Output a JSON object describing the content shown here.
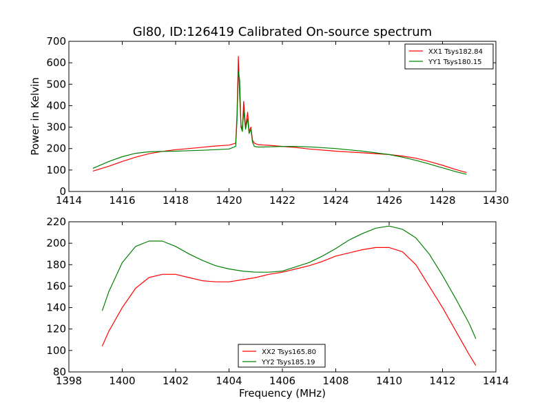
{
  "chart_data": [
    {
      "type": "line",
      "title": "Gl80, ID:126419 Calibrated On-source spectrum",
      "xlabel": "",
      "ylabel": "Power in Kelvin",
      "xlim": [
        1414,
        1430
      ],
      "ylim": [
        0,
        700
      ],
      "xticks": [
        "1414",
        "1416",
        "1418",
        "1420",
        "1422",
        "1424",
        "1426",
        "1428",
        "1430"
      ],
      "yticks": [
        "0",
        "100",
        "200",
        "300",
        "400",
        "500",
        "600",
        "700"
      ],
      "legend_position": "upper right",
      "series": [
        {
          "name": "XX1 Tsys182.84",
          "color": "#ff0000",
          "x": [
            1414.9,
            1415.5,
            1416,
            1416.5,
            1417,
            1417.5,
            1418,
            1418.5,
            1419,
            1419.5,
            1420,
            1420.25,
            1420.3,
            1420.35,
            1420.4,
            1420.45,
            1420.5,
            1420.55,
            1420.62,
            1420.7,
            1420.75,
            1420.82,
            1420.88,
            1420.95,
            1421.1,
            1421.5,
            1422,
            1422.5,
            1423,
            1424,
            1425,
            1426,
            1426.5,
            1427,
            1427.5,
            1428,
            1428.5,
            1428.9
          ],
          "y": [
            95,
            118,
            140,
            160,
            176,
            187,
            195,
            200,
            206,
            212,
            216,
            225,
            360,
            630,
            440,
            310,
            290,
            420,
            300,
            370,
            280,
            300,
            240,
            225,
            218,
            215,
            210,
            205,
            198,
            188,
            180,
            172,
            165,
            155,
            140,
            122,
            102,
            88
          ]
        },
        {
          "name": "YY1 Tsys180.15",
          "color": "#008000",
          "x": [
            1414.9,
            1415.5,
            1416,
            1416.5,
            1417,
            1417.5,
            1418,
            1418.5,
            1419,
            1419.5,
            1420,
            1420.25,
            1420.3,
            1420.35,
            1420.4,
            1420.45,
            1420.5,
            1420.55,
            1420.62,
            1420.7,
            1420.75,
            1420.82,
            1420.88,
            1420.95,
            1421.1,
            1421.5,
            1422,
            1422.5,
            1423,
            1424,
            1425,
            1426,
            1426.5,
            1427,
            1427.5,
            1428,
            1428.5,
            1428.9
          ],
          "y": [
            108,
            140,
            162,
            178,
            185,
            187,
            188,
            190,
            192,
            195,
            198,
            210,
            330,
            560,
            520,
            300,
            280,
            380,
            290,
            340,
            270,
            290,
            230,
            210,
            207,
            208,
            210,
            210,
            208,
            200,
            188,
            172,
            160,
            145,
            128,
            110,
            92,
            80
          ]
        }
      ]
    },
    {
      "type": "line",
      "title": "",
      "xlabel": "Frequency (MHz)",
      "ylabel": "",
      "xlim": [
        1398,
        1414
      ],
      "ylim": [
        80,
        220
      ],
      "xticks": [
        "1398",
        "1400",
        "1402",
        "1404",
        "1406",
        "1408",
        "1410",
        "1412",
        "1414"
      ],
      "yticks": [
        "80",
        "100",
        "120",
        "140",
        "160",
        "180",
        "200",
        "220"
      ],
      "legend_position": "lower center",
      "series": [
        {
          "name": "XX2 Tsys165.80",
          "color": "#ff0000",
          "x": [
            1399.25,
            1399.5,
            1400,
            1400.5,
            1401,
            1401.5,
            1402,
            1402.5,
            1403,
            1403.5,
            1404,
            1404.5,
            1405,
            1405.5,
            1406,
            1406.5,
            1407,
            1407.5,
            1408,
            1408.5,
            1409,
            1409.5,
            1410,
            1410.5,
            1411,
            1411.5,
            1412,
            1412.5,
            1413,
            1413.25
          ],
          "y": [
            104,
            118,
            140,
            158,
            168,
            171,
            171,
            168,
            165,
            164,
            164,
            166,
            168,
            171,
            173,
            176,
            179,
            183,
            188,
            191,
            194,
            196,
            196,
            192,
            180,
            160,
            140,
            118,
            96,
            86
          ]
        },
        {
          "name": "YY2 Tsys185.19",
          "color": "#008000",
          "x": [
            1399.25,
            1399.5,
            1400,
            1400.5,
            1401,
            1401.5,
            1402,
            1402.5,
            1403,
            1403.5,
            1404,
            1404.5,
            1405,
            1405.5,
            1406,
            1406.5,
            1407,
            1407.5,
            1408,
            1408.5,
            1409,
            1409.5,
            1410,
            1410.5,
            1411,
            1411.5,
            1412,
            1412.5,
            1413,
            1413.25
          ],
          "y": [
            137,
            155,
            182,
            197,
            202,
            202,
            197,
            190,
            184,
            179,
            176,
            174,
            173,
            173,
            174,
            178,
            182,
            188,
            195,
            203,
            209,
            214,
            216,
            213,
            205,
            190,
            170,
            148,
            125,
            111
          ]
        }
      ]
    }
  ]
}
